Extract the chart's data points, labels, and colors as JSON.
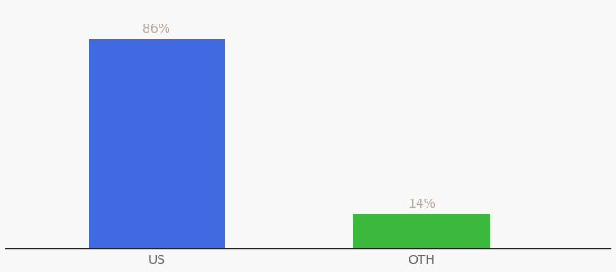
{
  "categories": [
    "US",
    "OTH"
  ],
  "values": [
    86,
    14
  ],
  "bar_colors": [
    "#4169E1",
    "#3CB83C"
  ],
  "value_labels": [
    "86%",
    "14%"
  ],
  "ylim": [
    0,
    100
  ],
  "background_color": "#f8f8f8",
  "bar_width": 0.18,
  "label_fontsize": 10,
  "tick_fontsize": 10,
  "spine_color": "#222222",
  "label_color": "#b8a898",
  "tick_color": "#666666",
  "x_positions": [
    0.28,
    0.63
  ],
  "xlim": [
    0.08,
    0.88
  ]
}
